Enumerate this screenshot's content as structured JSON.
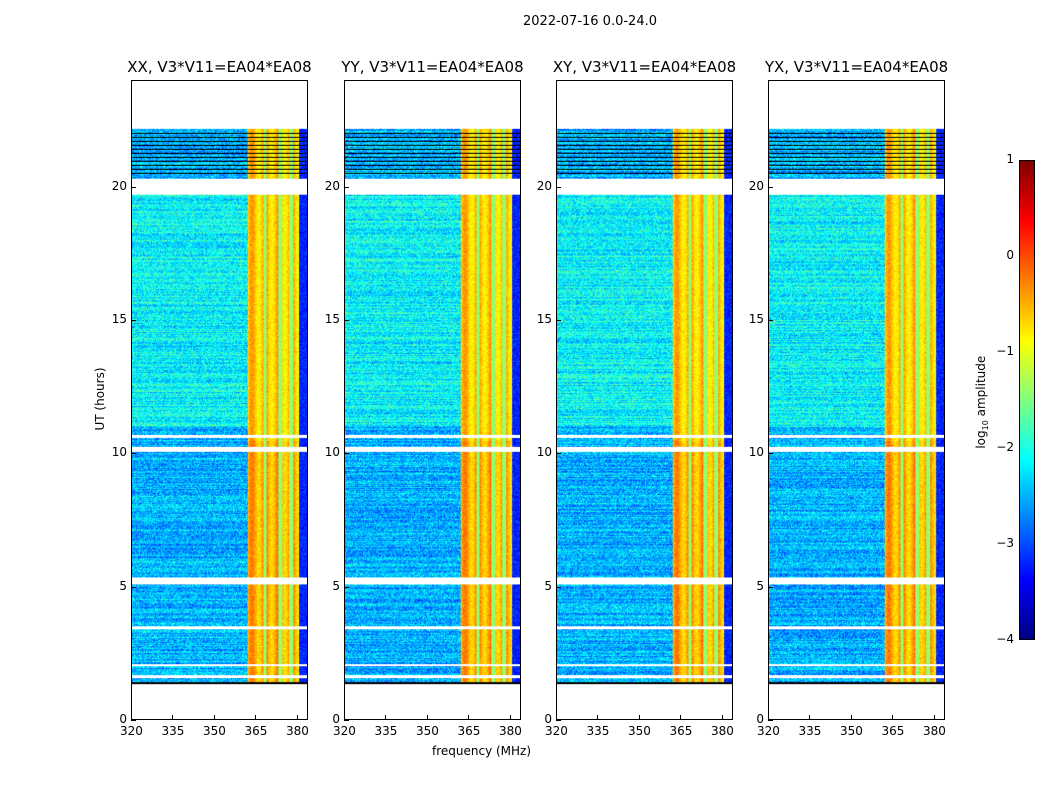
{
  "chart_data": {
    "type": "heatmap",
    "suptitle": "2022-07-16 0.0-24.0",
    "panels": [
      {
        "title": "XX, V3*V11=EA04*EA08"
      },
      {
        "title": "YY, V3*V11=EA04*EA08"
      },
      {
        "title": "XY, V3*V11=EA04*EA08"
      },
      {
        "title": "YX, V3*V11=EA04*EA08"
      }
    ],
    "xlabel": "frequency (MHz)",
    "ylabel": "UT (hours)",
    "xlim": [
      320,
      384
    ],
    "ylim": [
      0,
      24
    ],
    "xticks": [
      "320",
      "335",
      "350",
      "365",
      "380"
    ],
    "yticks": [
      "0",
      "5",
      "10",
      "15",
      "20"
    ],
    "data_hours": [
      1.35,
      22.2
    ],
    "bright_band_mhz": [
      362,
      381
    ],
    "colorbar": {
      "label_main": "log",
      "label_sub": "10",
      "label_tail": " amplitude",
      "range": [
        -4,
        1
      ],
      "ticks": [
        "1",
        "0",
        "−1",
        "−2",
        "−3",
        "−4"
      ],
      "colormap": "jet"
    }
  }
}
